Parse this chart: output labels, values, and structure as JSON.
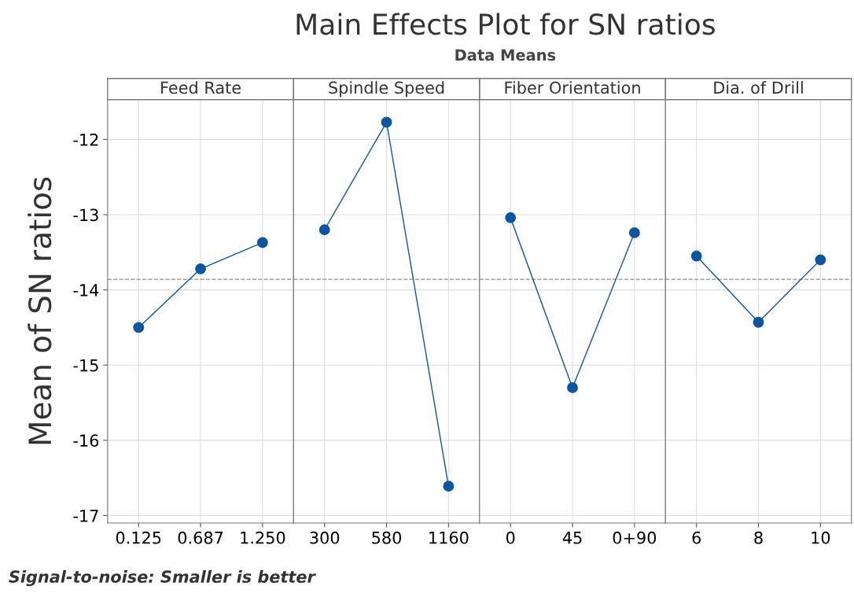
{
  "chart_data": [
    {
      "type": "line",
      "xlabel": "Feed Rate",
      "ylabel": "Mean of SN ratios",
      "categories": [
        "0.125",
        "0.687",
        "1.250"
      ],
      "series": [
        {
          "color": "#0b56a4",
          "values": [
            -14.5,
            -13.72,
            -13.37
          ]
        }
      ],
      "ylim": [
        -17.1,
        -11.47
      ],
      "yticks": [
        -17,
        -16,
        -15,
        -14,
        -13,
        -12
      ],
      "ref_lines": [
        {
          "axis": "y",
          "value": -13.86,
          "color": "#a0a0a0",
          "line_style": "dashed"
        }
      ],
      "grid": true,
      "marker": "circle",
      "line_style": "solid",
      "annotations": [
        "Signal-to-noise: Smaller is better"
      ]
    },
    {
      "type": "line",
      "title": "Main Effects Plot for SN ratios",
      "subtitle": "Data Means",
      "xlabel": "Spindle Speed",
      "categories": [
        "300",
        "580",
        "1160"
      ],
      "series": [
        {
          "color": "#0b56a4",
          "values": [
            -13.2,
            -11.77,
            -16.61
          ]
        }
      ],
      "ylim": [
        -17.1,
        -11.47
      ],
      "yticks": [
        -17,
        -16,
        -15,
        -14,
        -13,
        -12
      ],
      "tick_labels": "x",
      "ref_lines": [
        {
          "axis": "y",
          "value": -13.86,
          "color": "#a0a0a0",
          "line_style": "dashed"
        }
      ],
      "grid": true,
      "marker": "circle",
      "line_style": "solid"
    },
    {
      "type": "line",
      "xlabel": "Fiber Orientation",
      "categories": [
        "0",
        "45",
        "0+90"
      ],
      "series": [
        {
          "color": "#0b56a4",
          "values": [
            -13.04,
            -15.3,
            -13.24
          ]
        }
      ],
      "ylim": [
        -17.1,
        -11.47
      ],
      "yticks": [
        -17,
        -16,
        -15,
        -14,
        -13,
        -12
      ],
      "tick_labels": "x",
      "ref_lines": [
        {
          "axis": "y",
          "value": -13.86,
          "color": "#a0a0a0",
          "line_style": "dashed"
        }
      ],
      "grid": true,
      "marker": "circle",
      "line_style": "solid"
    },
    {
      "type": "line",
      "xlabel": "Dia. of Drill",
      "categories": [
        "6",
        "8",
        "10"
      ],
      "series": [
        {
          "color": "#0b56a4",
          "values": [
            -13.55,
            -14.43,
            -13.6
          ]
        }
      ],
      "ylim": [
        -17.1,
        -11.47
      ],
      "yticks": [
        -17,
        -16,
        -15,
        -14,
        -13,
        -12
      ],
      "tick_labels": "x",
      "ref_lines": [
        {
          "axis": "y",
          "value": -13.86,
          "color": "#a0a0a0",
          "line_style": "dashed"
        }
      ],
      "grid": true,
      "marker": "circle",
      "line_style": "solid"
    }
  ]
}
